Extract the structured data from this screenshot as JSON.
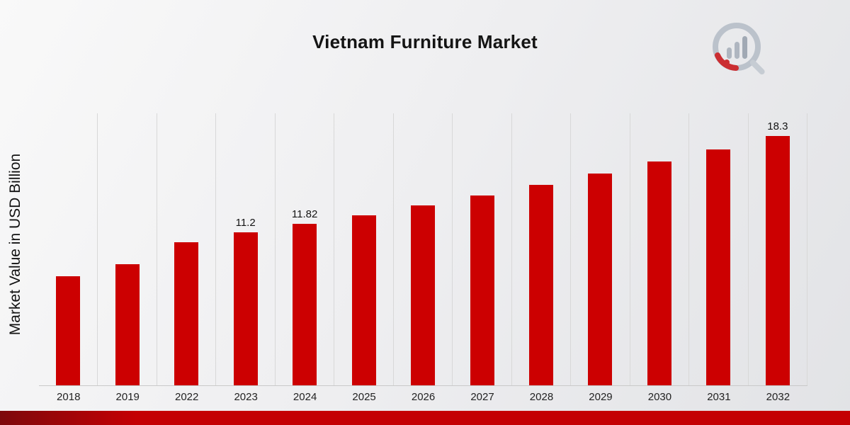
{
  "title": "Vietnam Furniture Market",
  "y_axis_label": "Market Value in USD Billion",
  "logo_name": "market-research-future-logo",
  "colors": {
    "bar": "#cc0001",
    "gridline": "#d8d8d8",
    "baseline": "#c9c9c9",
    "footer_red": "#c40003",
    "footer_dark_red": "#7d090c",
    "title_text": "#141414",
    "tick_text": "#222222"
  },
  "chart_data": {
    "type": "bar",
    "title": "Vietnam Furniture Market",
    "xlabel": "",
    "ylabel": "Market Value in USD Billion",
    "categories": [
      "2018",
      "2019",
      "2022",
      "2023",
      "2024",
      "2025",
      "2026",
      "2027",
      "2028",
      "2029",
      "2030",
      "2031",
      "2032"
    ],
    "values": [
      8.0,
      8.9,
      10.5,
      11.2,
      11.82,
      12.48,
      13.18,
      13.92,
      14.7,
      15.52,
      16.39,
      17.31,
      18.3
    ],
    "data_labels": [
      "",
      "",
      "",
      "11.2",
      "11.82",
      "",
      "",
      "",
      "",
      "",
      "",
      "",
      "18.3"
    ],
    "ylim": [
      0,
      20
    ],
    "grid": "vertical-only",
    "legend": "none",
    "bar_color": "#cc0001"
  }
}
